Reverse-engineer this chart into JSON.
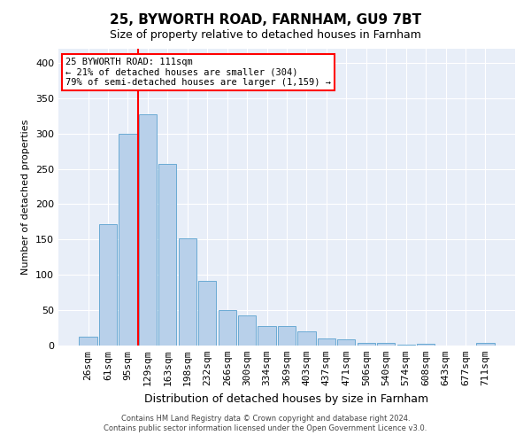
{
  "title": "25, BYWORTH ROAD, FARNHAM, GU9 7BT",
  "subtitle": "Size of property relative to detached houses in Farnham",
  "xlabel": "Distribution of detached houses by size in Farnham",
  "ylabel": "Number of detached properties",
  "bar_labels": [
    "26sqm",
    "61sqm",
    "95sqm",
    "129sqm",
    "163sqm",
    "198sqm",
    "232sqm",
    "266sqm",
    "300sqm",
    "334sqm",
    "369sqm",
    "403sqm",
    "437sqm",
    "471sqm",
    "506sqm",
    "540sqm",
    "574sqm",
    "608sqm",
    "643sqm",
    "677sqm",
    "711sqm"
  ],
  "bar_values": [
    12,
    172,
    300,
    327,
    257,
    152,
    92,
    50,
    43,
    28,
    28,
    20,
    10,
    9,
    4,
    4,
    1,
    3,
    0,
    0,
    4
  ],
  "bar_color": "#b8d0ea",
  "bar_edgecolor": "#6aaad4",
  "vline_color": "red",
  "vline_pos": 2.5,
  "annotation_text": "25 BYWORTH ROAD: 111sqm\n← 21% of detached houses are smaller (304)\n79% of semi-detached houses are larger (1,159) →",
  "annotation_box_color": "white",
  "annotation_box_edgecolor": "red",
  "ylim": [
    0,
    420
  ],
  "yticks": [
    0,
    50,
    100,
    150,
    200,
    250,
    300,
    350,
    400
  ],
  "background_color": "#e8eef8",
  "grid_color": "white",
  "footer_line1": "Contains HM Land Registry data © Crown copyright and database right 2024.",
  "footer_line2": "Contains public sector information licensed under the Open Government Licence v3.0."
}
